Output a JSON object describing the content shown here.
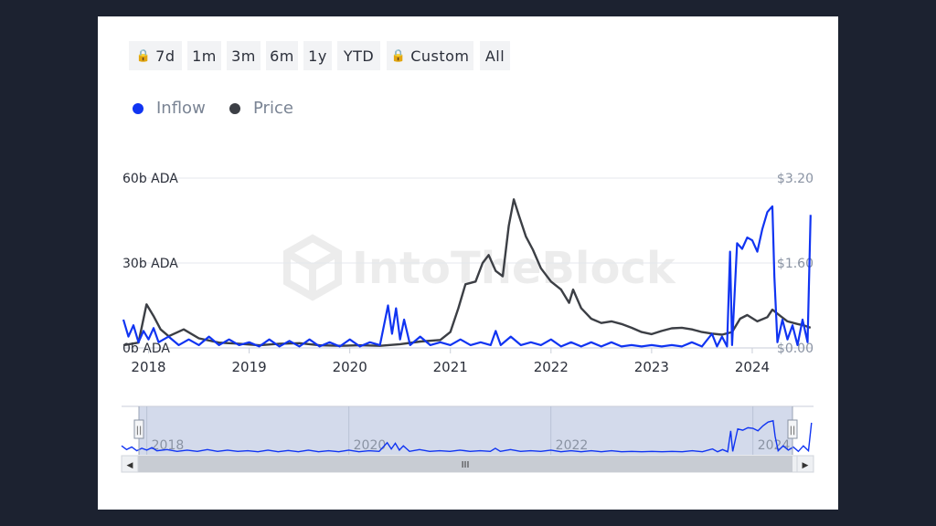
{
  "toolbar": {
    "buttons": [
      {
        "label": "7d",
        "locked": true
      },
      {
        "label": "1m",
        "locked": false
      },
      {
        "label": "3m",
        "locked": false
      },
      {
        "label": "6m",
        "locked": false
      },
      {
        "label": "1y",
        "locked": false
      },
      {
        "label": "YTD",
        "locked": false
      },
      {
        "label": "Custom",
        "locked": true
      },
      {
        "label": "All",
        "locked": false
      }
    ]
  },
  "watermark": "IntoTheBlock",
  "chart_data": {
    "type": "line",
    "x_tick_labels": [
      "2018",
      "2019",
      "2020",
      "2021",
      "2022",
      "2023",
      "2024"
    ],
    "y_left": {
      "ticks": [
        "0b ADA",
        "30b ADA",
        "60b ADA"
      ],
      "ylim": [
        0,
        60
      ]
    },
    "y_right": {
      "ticks": [
        "$0.00",
        "$1.60",
        "$3.20"
      ],
      "ylim": [
        0,
        3.2
      ]
    },
    "grid": true,
    "legend_position": "top-left",
    "series": [
      {
        "name": "Inflow",
        "axis": "left",
        "color": "#1034f2",
        "points": [
          [
            2017.75,
            10
          ],
          [
            2017.8,
            4
          ],
          [
            2017.85,
            8
          ],
          [
            2017.9,
            2
          ],
          [
            2017.95,
            6
          ],
          [
            2018.0,
            3
          ],
          [
            2018.05,
            7
          ],
          [
            2018.1,
            2
          ],
          [
            2018.2,
            4
          ],
          [
            2018.3,
            1
          ],
          [
            2018.4,
            3
          ],
          [
            2018.5,
            1
          ],
          [
            2018.6,
            4
          ],
          [
            2018.7,
            1
          ],
          [
            2018.8,
            3
          ],
          [
            2018.9,
            1
          ],
          [
            2019.0,
            2
          ],
          [
            2019.1,
            0.5
          ],
          [
            2019.2,
            3
          ],
          [
            2019.3,
            0.5
          ],
          [
            2019.4,
            2.5
          ],
          [
            2019.5,
            0.5
          ],
          [
            2019.6,
            3
          ],
          [
            2019.7,
            0.5
          ],
          [
            2019.8,
            2
          ],
          [
            2019.9,
            0.5
          ],
          [
            2020.0,
            3
          ],
          [
            2020.1,
            0.5
          ],
          [
            2020.2,
            2
          ],
          [
            2020.3,
            1
          ],
          [
            2020.38,
            15
          ],
          [
            2020.42,
            5
          ],
          [
            2020.46,
            14
          ],
          [
            2020.5,
            3
          ],
          [
            2020.54,
            10
          ],
          [
            2020.6,
            1
          ],
          [
            2020.7,
            4
          ],
          [
            2020.8,
            1
          ],
          [
            2020.9,
            2
          ],
          [
            2021.0,
            1
          ],
          [
            2021.1,
            3
          ],
          [
            2021.2,
            1
          ],
          [
            2021.3,
            2
          ],
          [
            2021.4,
            1
          ],
          [
            2021.45,
            6
          ],
          [
            2021.5,
            1
          ],
          [
            2021.6,
            4
          ],
          [
            2021.7,
            1
          ],
          [
            2021.8,
            2
          ],
          [
            2021.9,
            1
          ],
          [
            2022.0,
            3
          ],
          [
            2022.1,
            0.5
          ],
          [
            2022.2,
            2
          ],
          [
            2022.3,
            0.5
          ],
          [
            2022.4,
            2
          ],
          [
            2022.5,
            0.5
          ],
          [
            2022.6,
            2
          ],
          [
            2022.7,
            0.5
          ],
          [
            2022.8,
            1
          ],
          [
            2022.9,
            0.5
          ],
          [
            2023.0,
            1
          ],
          [
            2023.1,
            0.5
          ],
          [
            2023.2,
            1
          ],
          [
            2023.3,
            0.5
          ],
          [
            2023.4,
            2
          ],
          [
            2023.5,
            0.5
          ],
          [
            2023.6,
            5
          ],
          [
            2023.65,
            0.5
          ],
          [
            2023.7,
            4
          ],
          [
            2023.75,
            0.5
          ],
          [
            2023.78,
            34
          ],
          [
            2023.8,
            1
          ],
          [
            2023.85,
            37
          ],
          [
            2023.9,
            35
          ],
          [
            2023.95,
            39
          ],
          [
            2024.0,
            38
          ],
          [
            2024.05,
            34
          ],
          [
            2024.1,
            42
          ],
          [
            2024.15,
            48
          ],
          [
            2024.2,
            50
          ],
          [
            2024.22,
            25
          ],
          [
            2024.25,
            2
          ],
          [
            2024.3,
            10
          ],
          [
            2024.35,
            3
          ],
          [
            2024.4,
            8
          ],
          [
            2024.45,
            1
          ],
          [
            2024.5,
            10
          ],
          [
            2024.55,
            2
          ],
          [
            2024.58,
            47
          ]
        ]
      },
      {
        "name": "Price",
        "axis": "right",
        "color": "#3c3f45",
        "points": [
          [
            2017.75,
            0.05
          ],
          [
            2017.9,
            0.1
          ],
          [
            2017.98,
            0.82
          ],
          [
            2018.05,
            0.6
          ],
          [
            2018.12,
            0.35
          ],
          [
            2018.2,
            0.22
          ],
          [
            2018.35,
            0.35
          ],
          [
            2018.5,
            0.18
          ],
          [
            2018.7,
            0.1
          ],
          [
            2018.9,
            0.08
          ],
          [
            2019.1,
            0.05
          ],
          [
            2019.3,
            0.08
          ],
          [
            2019.5,
            0.09
          ],
          [
            2019.7,
            0.05
          ],
          [
            2019.9,
            0.04
          ],
          [
            2020.1,
            0.05
          ],
          [
            2020.3,
            0.04
          ],
          [
            2020.5,
            0.07
          ],
          [
            2020.7,
            0.12
          ],
          [
            2020.9,
            0.15
          ],
          [
            2021.0,
            0.3
          ],
          [
            2021.08,
            0.75
          ],
          [
            2021.15,
            1.2
          ],
          [
            2021.25,
            1.25
          ],
          [
            2021.32,
            1.6
          ],
          [
            2021.38,
            1.75
          ],
          [
            2021.45,
            1.45
          ],
          [
            2021.52,
            1.35
          ],
          [
            2021.58,
            2.3
          ],
          [
            2021.63,
            2.8
          ],
          [
            2021.68,
            2.5
          ],
          [
            2021.75,
            2.1
          ],
          [
            2021.82,
            1.85
          ],
          [
            2021.9,
            1.5
          ],
          [
            2022.0,
            1.25
          ],
          [
            2022.1,
            1.1
          ],
          [
            2022.18,
            0.85
          ],
          [
            2022.22,
            1.1
          ],
          [
            2022.3,
            0.75
          ],
          [
            2022.4,
            0.55
          ],
          [
            2022.5,
            0.47
          ],
          [
            2022.6,
            0.5
          ],
          [
            2022.7,
            0.45
          ],
          [
            2022.8,
            0.38
          ],
          [
            2022.9,
            0.3
          ],
          [
            2023.0,
            0.26
          ],
          [
            2023.1,
            0.32
          ],
          [
            2023.2,
            0.37
          ],
          [
            2023.3,
            0.38
          ],
          [
            2023.4,
            0.35
          ],
          [
            2023.5,
            0.3
          ],
          [
            2023.6,
            0.27
          ],
          [
            2023.7,
            0.25
          ],
          [
            2023.8,
            0.3
          ],
          [
            2023.88,
            0.55
          ],
          [
            2023.95,
            0.62
          ],
          [
            2024.05,
            0.5
          ],
          [
            2024.15,
            0.58
          ],
          [
            2024.2,
            0.72
          ],
          [
            2024.28,
            0.6
          ],
          [
            2024.35,
            0.5
          ],
          [
            2024.45,
            0.45
          ],
          [
            2024.52,
            0.42
          ],
          [
            2024.58,
            0.38
          ]
        ]
      }
    ]
  },
  "navigator": {
    "x_tick_labels": [
      "2018",
      "2020",
      "2022",
      "2024"
    ],
    "scroll_grip": "III",
    "left_arrow": "◀",
    "right_arrow": "▶",
    "handle_grip": "||"
  }
}
